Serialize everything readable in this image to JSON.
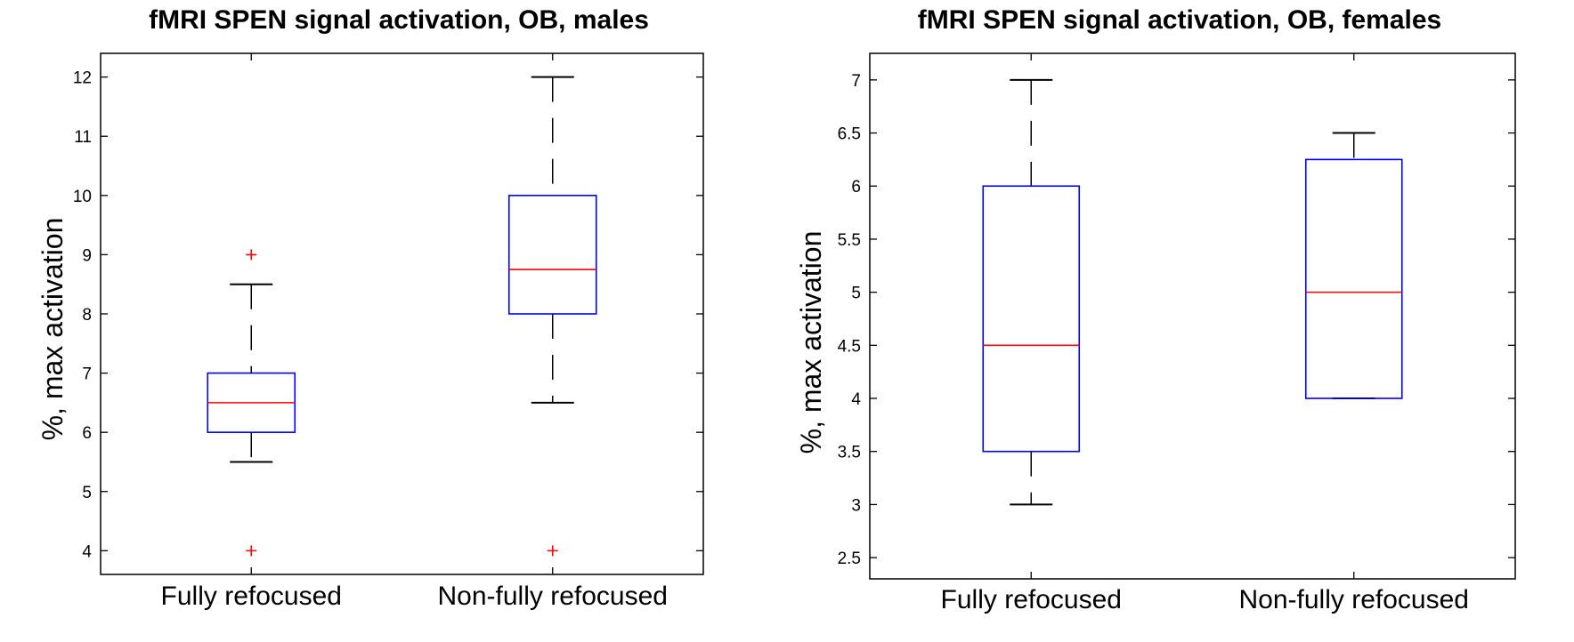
{
  "chart_data": [
    {
      "type": "box",
      "title": "fMRI SPEN signal activation, OB, males",
      "ylabel": "%, max activation",
      "xlabel": "",
      "ylim": [
        3.6,
        12.4
      ],
      "yticks": [
        4,
        5,
        6,
        7,
        8,
        9,
        10,
        11,
        12
      ],
      "categories": [
        "Fully refocused",
        "Non-fully refocused"
      ],
      "boxes": [
        {
          "name": "Fully refocused",
          "whisker_low": 5.5,
          "q1": 6,
          "median": 6.5,
          "q3": 7,
          "whisker_high": 8.5,
          "outliers": [
            4,
            9
          ]
        },
        {
          "name": "Non-fully refocused",
          "whisker_low": 6.5,
          "q1": 8,
          "median": 8.75,
          "q3": 10,
          "whisker_high": 12,
          "outliers": [
            4
          ]
        }
      ]
    },
    {
      "type": "box",
      "title": "fMRI SPEN signal activation, OB, females",
      "ylabel": "%, max activation",
      "xlabel": "",
      "ylim": [
        2.3,
        7.25
      ],
      "yticks": [
        2.5,
        3,
        3.5,
        4,
        4.5,
        5,
        5.5,
        6,
        6.5,
        7
      ],
      "categories": [
        "Fully refocused",
        "Non-fully refocused"
      ],
      "boxes": [
        {
          "name": "Fully refocused",
          "whisker_low": 3,
          "q1": 3.5,
          "median": 4.5,
          "q3": 6,
          "whisker_high": 7,
          "outliers": []
        },
        {
          "name": "Non-fully refocused",
          "whisker_low": 4,
          "q1": 4,
          "median": 5,
          "q3": 6.25,
          "whisker_high": 6.5,
          "outliers": []
        }
      ]
    }
  ],
  "colors": {
    "box": "#0000ff",
    "median": "#ff0000",
    "whisker": "#000000",
    "outlier": "#ff0000",
    "axis": "#000000"
  }
}
